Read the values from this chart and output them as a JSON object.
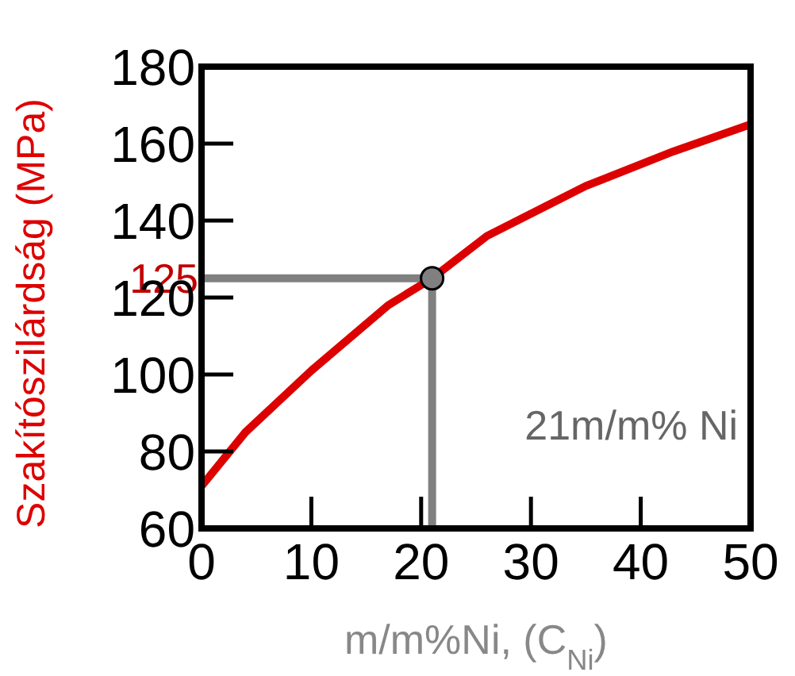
{
  "chart_data": {
    "type": "line",
    "xlabel": "m/m%Ni, (C$_{Ni}$)",
    "ylabel": "Szakítószilárdság (MPa)",
    "xlim": [
      0,
      50
    ],
    "ylim": [
      60,
      180
    ],
    "xticks": [
      0,
      10,
      20,
      30,
      40,
      50
    ],
    "yticks": [
      60,
      80,
      100,
      120,
      140,
      160,
      180
    ],
    "grid": false,
    "marker": "none",
    "line_style": "solid",
    "series": [
      {
        "color": "#dd0000",
        "x": [
          0,
          4,
          10,
          17,
          21,
          26,
          35,
          43,
          50
        ],
        "values": [
          71,
          85,
          101,
          118,
          125,
          136,
          149,
          158,
          165
        ]
      },
      {
        "type": "scatter",
        "color": "#808080",
        "x": [
          21
        ],
        "values": [
          125
        ],
        "marker": "circle"
      }
    ],
    "ref_lines": [
      {
        "axis": "y",
        "value": 125,
        "label": "125",
        "color": "#808080"
      },
      {
        "axis": "x",
        "value": 21,
        "label": "21m/m% Ni",
        "color": "#808080"
      }
    ]
  }
}
